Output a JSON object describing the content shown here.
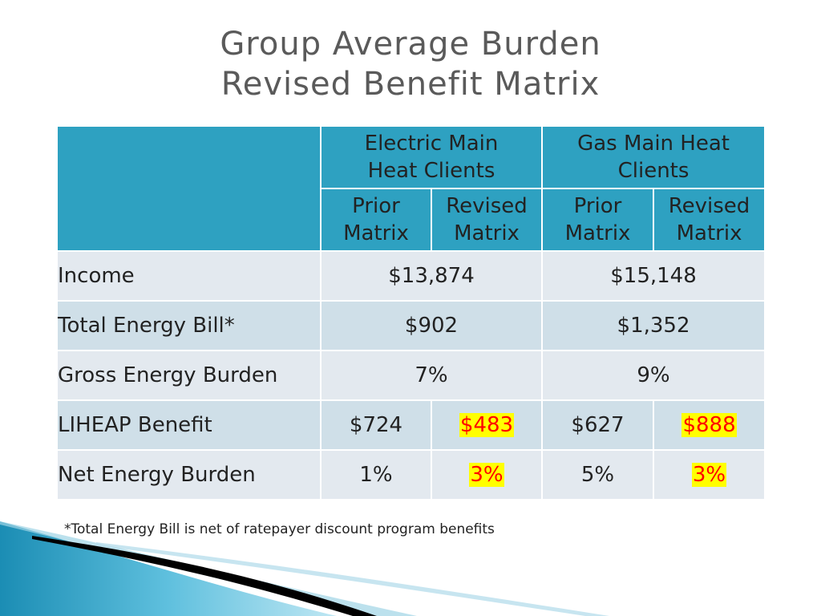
{
  "title": {
    "line1": "Group Average Burden",
    "line2": "Revised Benefit Matrix"
  },
  "table": {
    "groups": [
      "Electric Main Heat Clients",
      "Gas Main Heat Clients"
    ],
    "subheaders": {
      "prior_l1": "Prior",
      "prior_l2": "Matrix",
      "revised_l1": "Revised",
      "revised_l2": "Matrix"
    },
    "rows": [
      {
        "label": "Income",
        "electric": "$13,874",
        "gas": "$15,148"
      },
      {
        "label": "Total Energy Bill*",
        "electric": "$902",
        "gas": "$1,352"
      },
      {
        "label": "Gross Energy Burden",
        "electric": "7%",
        "gas": "9%"
      },
      {
        "label": "LIHEAP Benefit",
        "electric_prior": "$724",
        "electric_revised": "$483",
        "gas_prior": "$627",
        "gas_revised": "$888"
      },
      {
        "label": "Net Energy Burden",
        "electric_prior": "1%",
        "electric_revised": "3%",
        "gas_prior": "5%",
        "gas_revised": "3%"
      }
    ]
  },
  "footnote": "*Total Energy Bill is net of ratepayer discount program benefits",
  "colors": {
    "header_bg": "#2ea1c1",
    "row_light": "#e3e9ef",
    "row_dark": "#cfdfe8",
    "highlight_bg": "#ffff00",
    "highlight_text": "#ff0000"
  }
}
